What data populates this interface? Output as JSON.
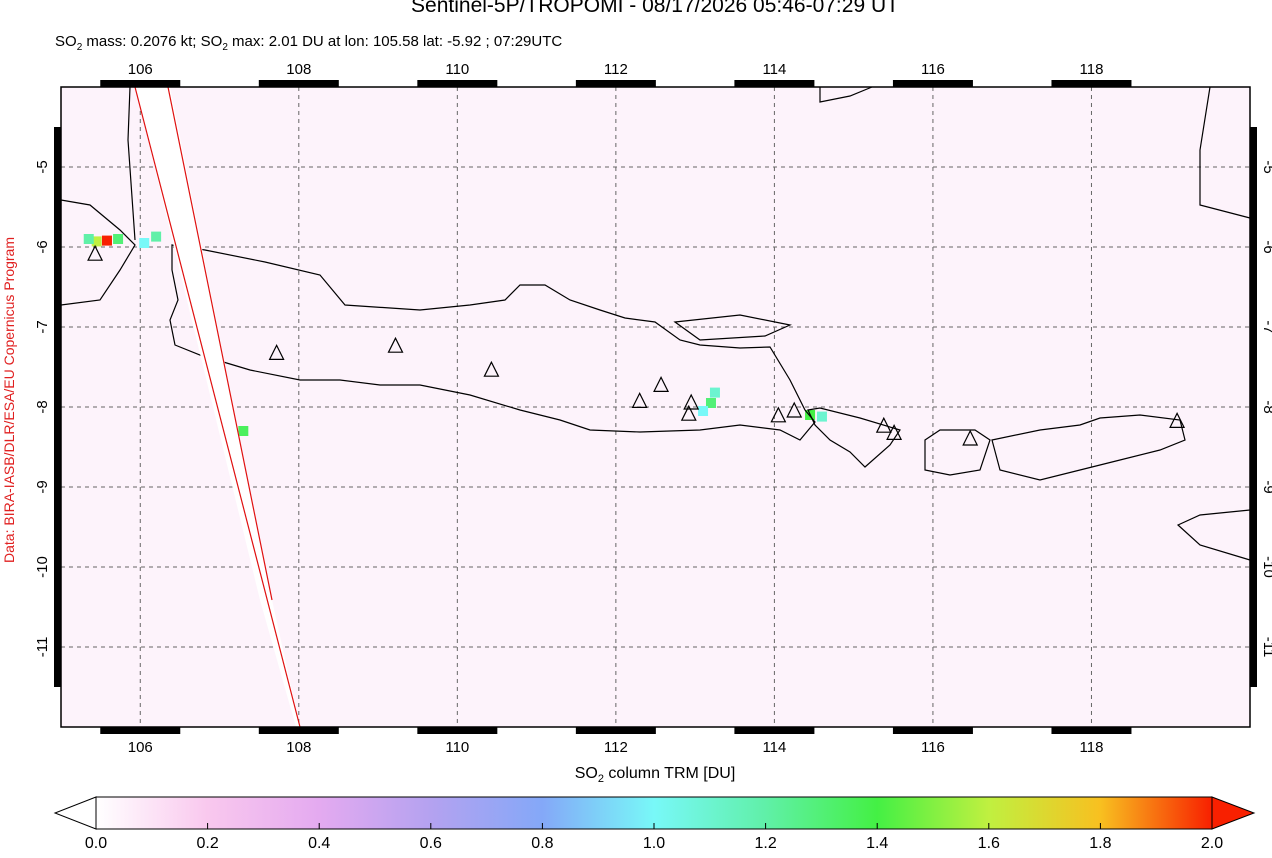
{
  "chart_data": {
    "type": "map",
    "title": "Sentinel-5P/TROPOMI - 08/17/2026 05:46-07:29 UT",
    "subtitle": [
      "SO",
      "2",
      " mass: 0.2076 kt; SO",
      "2",
      " max: 2.01 DU at lon: 105.58 lat: -5.92 ; 07:29UTC"
    ],
    "credit": "Data: BIRA-IASB/DLR/ESA/EU Copernicus Program",
    "colorbar_label": [
      "SO",
      "2",
      " column TRM [DU]"
    ],
    "xlim": [
      105,
      120
    ],
    "ylim": [
      -12,
      -4
    ],
    "xticks": [
      106,
      108,
      110,
      112,
      114,
      116,
      118
    ],
    "yticks": [
      -5,
      -6,
      -7,
      -8,
      -9,
      -10,
      -11
    ],
    "grid": true,
    "colorbar_lim": [
      0,
      2
    ],
    "colorbar_ticks": [
      {
        "value": 0,
        "label": "0.0"
      },
      0.2,
      0.4,
      0.6,
      0.8,
      {
        "value": 1,
        "label": "1.0"
      },
      1.2,
      1.4,
      1.6,
      1.8,
      {
        "value": 2,
        "label": "2.0"
      }
    ],
    "colorscale": [
      [
        0,
        "#ffffff"
      ],
      [
        0.2,
        "#f9c8ee"
      ],
      [
        0.4,
        "#e4aaf0"
      ],
      [
        0.6,
        "#b4a2f0"
      ],
      [
        0.8,
        "#84a8f8"
      ],
      [
        1.0,
        "#78f8f8"
      ],
      [
        1.2,
        "#60f0a8"
      ],
      [
        1.4,
        "#44f044"
      ],
      [
        1.6,
        "#c0f040"
      ],
      [
        1.8,
        "#f8c020"
      ],
      [
        2.0,
        "#f82000"
      ]
    ],
    "volcanoes": [
      {
        "lon": 105.43,
        "lat": -6.09
      },
      {
        "lon": 107.72,
        "lat": -7.33
      },
      {
        "lon": 109.22,
        "lat": -7.24
      },
      {
        "lon": 110.43,
        "lat": -7.54
      },
      {
        "lon": 112.3,
        "lat": -7.93
      },
      {
        "lon": 112.57,
        "lat": -7.73
      },
      {
        "lon": 112.95,
        "lat": -7.95
      },
      {
        "lon": 112.92,
        "lat": -8.09
      },
      {
        "lon": 114.05,
        "lat": -8.11
      },
      {
        "lon": 114.25,
        "lat": -8.05
      },
      {
        "lon": 115.38,
        "lat": -8.24
      },
      {
        "lon": 115.51,
        "lat": -8.33
      },
      {
        "lon": 116.47,
        "lat": -8.4
      },
      {
        "lon": 119.08,
        "lat": -8.18
      }
    ],
    "pixels": [
      {
        "lon": 105.58,
        "lat": -5.92,
        "value": 2.01
      },
      {
        "lon": 105.45,
        "lat": -5.93,
        "value": 1.6
      },
      {
        "lon": 105.72,
        "lat": -5.9,
        "value": 1.3
      },
      {
        "lon": 105.35,
        "lat": -5.9,
        "value": 1.2
      },
      {
        "lon": 106.2,
        "lat": -5.87,
        "value": 1.2
      },
      {
        "lon": 106.05,
        "lat": -5.95,
        "value": 1.0
      },
      {
        "lon": 113.2,
        "lat": -7.95,
        "value": 1.3
      },
      {
        "lon": 113.1,
        "lat": -8.05,
        "value": 1.0
      },
      {
        "lon": 113.25,
        "lat": -7.82,
        "value": 1.1
      },
      {
        "lon": 114.45,
        "lat": -8.1,
        "value": 1.4
      },
      {
        "lon": 114.6,
        "lat": -8.12,
        "value": 1.1
      },
      {
        "lon": 107.3,
        "lat": -8.3,
        "value": 1.35
      }
    ]
  }
}
